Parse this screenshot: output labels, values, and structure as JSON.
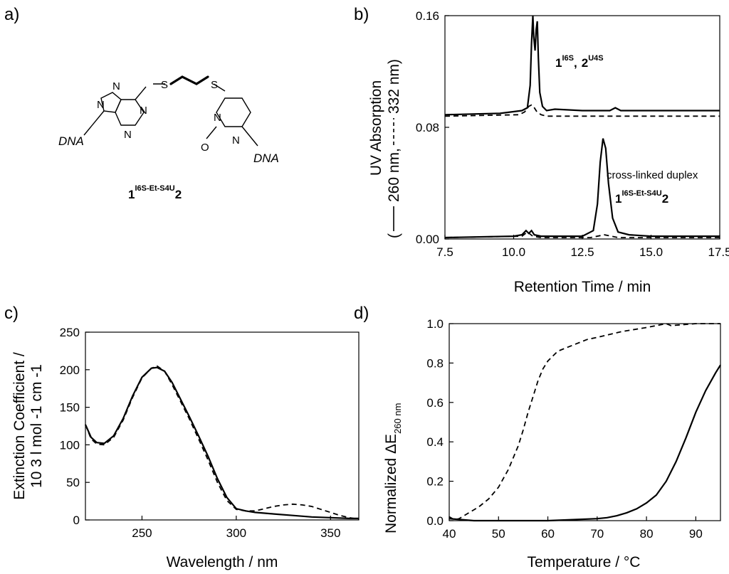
{
  "panels": {
    "a": {
      "letter": "a)",
      "labels": {
        "dna_left": "DNA",
        "dna_right": "DNA",
        "n": "N",
        "o": "O",
        "s": "S"
      },
      "compound": {
        "n1": "1",
        "sup": "I6S-Et-S4U",
        "n2": "2"
      }
    },
    "b": {
      "letter": "b)"
    },
    "c": {
      "letter": "c)"
    },
    "d": {
      "letter": "d)"
    }
  },
  "chart_data": [
    {
      "id": "b",
      "type": "line",
      "xlabel": "Retention Time / min",
      "ylabel_line1": "UV Absorption",
      "ylabel_line2_prefix": "(",
      "ylabel_solid": "260 nm,",
      "ylabel_dashed": "332 nm)",
      "xlim": [
        7.5,
        17.5
      ],
      "ylim": [
        0.0,
        0.16
      ],
      "xticks": [
        7.5,
        10.0,
        12.5,
        15.0,
        17.5
      ],
      "yticks": [
        0.0,
        0.08,
        0.16
      ],
      "xtick_labels": [
        "7.5",
        "10.0",
        "12.5",
        "15.0",
        "17.5"
      ],
      "ytick_labels": [
        "0.00",
        "0.08",
        "0.16"
      ],
      "annotations": [
        {
          "text_a": "1",
          "sup_a": "I6S",
          "comma": ",",
          "text_b": "2",
          "sup_b": "U4S"
        },
        {
          "line1": "cross-linked duplex",
          "text_a": "1",
          "sup_a": "I6S-Et-S4U",
          "text_b": "2"
        }
      ],
      "series": [
        {
          "name": "top 260 nm",
          "style": "solid",
          "x": [
            7.5,
            9.5,
            10.3,
            10.5,
            10.6,
            10.65,
            10.7,
            10.73,
            10.78,
            10.82,
            10.86,
            10.9,
            10.95,
            11.05,
            11.2,
            11.5,
            12.5,
            13.5,
            13.7,
            13.9,
            15,
            17.5
          ],
          "y": [
            0.089,
            0.09,
            0.092,
            0.094,
            0.11,
            0.14,
            0.16,
            0.145,
            0.135,
            0.15,
            0.156,
            0.13,
            0.105,
            0.095,
            0.092,
            0.093,
            0.092,
            0.092,
            0.094,
            0.092,
            0.092,
            0.092
          ]
        },
        {
          "name": "top 332 nm",
          "style": "dashed",
          "x": [
            7.5,
            10.2,
            10.4,
            10.55,
            10.65,
            10.75,
            10.85,
            11.0,
            11.2,
            13,
            17.5
          ],
          "y": [
            0.088,
            0.089,
            0.091,
            0.095,
            0.096,
            0.094,
            0.091,
            0.089,
            0.088,
            0.088,
            0.088
          ]
        },
        {
          "name": "bottom 260 nm",
          "style": "solid",
          "x": [
            7.5,
            10.0,
            10.3,
            10.45,
            10.55,
            10.65,
            10.75,
            11,
            12.5,
            12.9,
            13.05,
            13.15,
            13.25,
            13.35,
            13.45,
            13.6,
            13.8,
            14.2,
            15,
            17.5
          ],
          "y": [
            0.001,
            0.002,
            0.003,
            0.006,
            0.004,
            0.006,
            0.003,
            0.002,
            0.002,
            0.006,
            0.025,
            0.055,
            0.072,
            0.065,
            0.04,
            0.015,
            0.005,
            0.003,
            0.002,
            0.002
          ]
        },
        {
          "name": "bottom 332 nm",
          "style": "dashed",
          "x": [
            7.5,
            10.3,
            10.5,
            10.7,
            11,
            12.8,
            13.3,
            13.8,
            17.5
          ],
          "y": [
            0.001,
            0.002,
            0.005,
            0.002,
            0.001,
            0.001,
            0.003,
            0.001,
            0.001
          ]
        }
      ]
    },
    {
      "id": "c",
      "type": "line",
      "xlabel": "Wavelength / nm",
      "ylabel_line1": "Extinction Coefficient /",
      "ylabel_line2": "10 3 l mol -1 cm -1",
      "xlim": [
        220,
        365
      ],
      "ylim": [
        0,
        250
      ],
      "xticks": [
        250,
        300,
        350
      ],
      "yticks": [
        0,
        50,
        100,
        150,
        200,
        250
      ],
      "xtick_labels": [
        "250",
        "300",
        "350"
      ],
      "ytick_labels": [
        "0",
        "50",
        "100",
        "150",
        "200",
        "250"
      ],
      "series": [
        {
          "name": "solid",
          "style": "solid",
          "x": [
            220,
            223,
            226,
            230,
            235,
            240,
            245,
            250,
            255,
            258,
            262,
            266,
            270,
            275,
            280,
            285,
            290,
            295,
            300,
            305,
            310,
            320,
            330,
            340,
            350,
            360,
            365
          ],
          "y": [
            127,
            110,
            103,
            102,
            112,
            135,
            165,
            190,
            202,
            203,
            198,
            183,
            163,
            138,
            112,
            85,
            55,
            30,
            15,
            12,
            10,
            8,
            6,
            4,
            3,
            2,
            2
          ]
        },
        {
          "name": "dashed",
          "style": "dashed",
          "x": [
            220,
            223,
            226,
            230,
            235,
            240,
            245,
            250,
            255,
            258,
            262,
            266,
            270,
            275,
            280,
            285,
            290,
            295,
            300,
            305,
            310,
            315,
            320,
            325,
            330,
            335,
            340,
            345,
            350,
            355,
            360,
            365
          ],
          "y": [
            127,
            108,
            101,
            100,
            110,
            133,
            163,
            189,
            202,
            205,
            198,
            180,
            160,
            135,
            108,
            80,
            50,
            26,
            14,
            12,
            12,
            15,
            18,
            20,
            21,
            20,
            18,
            14,
            10,
            6,
            3,
            1
          ]
        }
      ]
    },
    {
      "id": "d",
      "type": "line",
      "xlabel": "Temperature / °C",
      "ylabel_prefix": "Normalized ΔE",
      "ylabel_sub": "260 nm",
      "xlim": [
        40,
        95
      ],
      "ylim": [
        0,
        1.0
      ],
      "xticks": [
        40,
        50,
        60,
        70,
        80,
        90
      ],
      "yticks": [
        0.0,
        0.2,
        0.4,
        0.6,
        0.8,
        1.0
      ],
      "xtick_labels": [
        "40",
        "50",
        "60",
        "70",
        "80",
        "90"
      ],
      "ytick_labels": [
        "0.0",
        "0.2",
        "0.4",
        "0.6",
        "0.8",
        "1.0"
      ],
      "series": [
        {
          "name": "solid",
          "style": "solid",
          "x": [
            40,
            45,
            50,
            55,
            60,
            65,
            70,
            72,
            74,
            76,
            78,
            80,
            82,
            84,
            86,
            88,
            90,
            92,
            94,
            95
          ],
          "y": [
            0.01,
            0.0,
            0.0,
            0.0,
            0.0,
            0.005,
            0.01,
            0.015,
            0.025,
            0.04,
            0.06,
            0.09,
            0.13,
            0.2,
            0.3,
            0.42,
            0.55,
            0.66,
            0.75,
            0.79
          ]
        },
        {
          "name": "dashed",
          "style": "dashed",
          "x": [
            40,
            41,
            42,
            44,
            46,
            48,
            50,
            52,
            54,
            55,
            56,
            57,
            58,
            59,
            60,
            62,
            64,
            66,
            68,
            70,
            75,
            80,
            84,
            85,
            90,
            95
          ],
          "y": [
            0.02,
            0.005,
            0.01,
            0.04,
            0.07,
            0.11,
            0.17,
            0.26,
            0.38,
            0.46,
            0.55,
            0.63,
            0.71,
            0.77,
            0.81,
            0.86,
            0.88,
            0.9,
            0.92,
            0.93,
            0.96,
            0.98,
            1.0,
            0.99,
            1.0,
            1.0
          ]
        }
      ]
    }
  ]
}
